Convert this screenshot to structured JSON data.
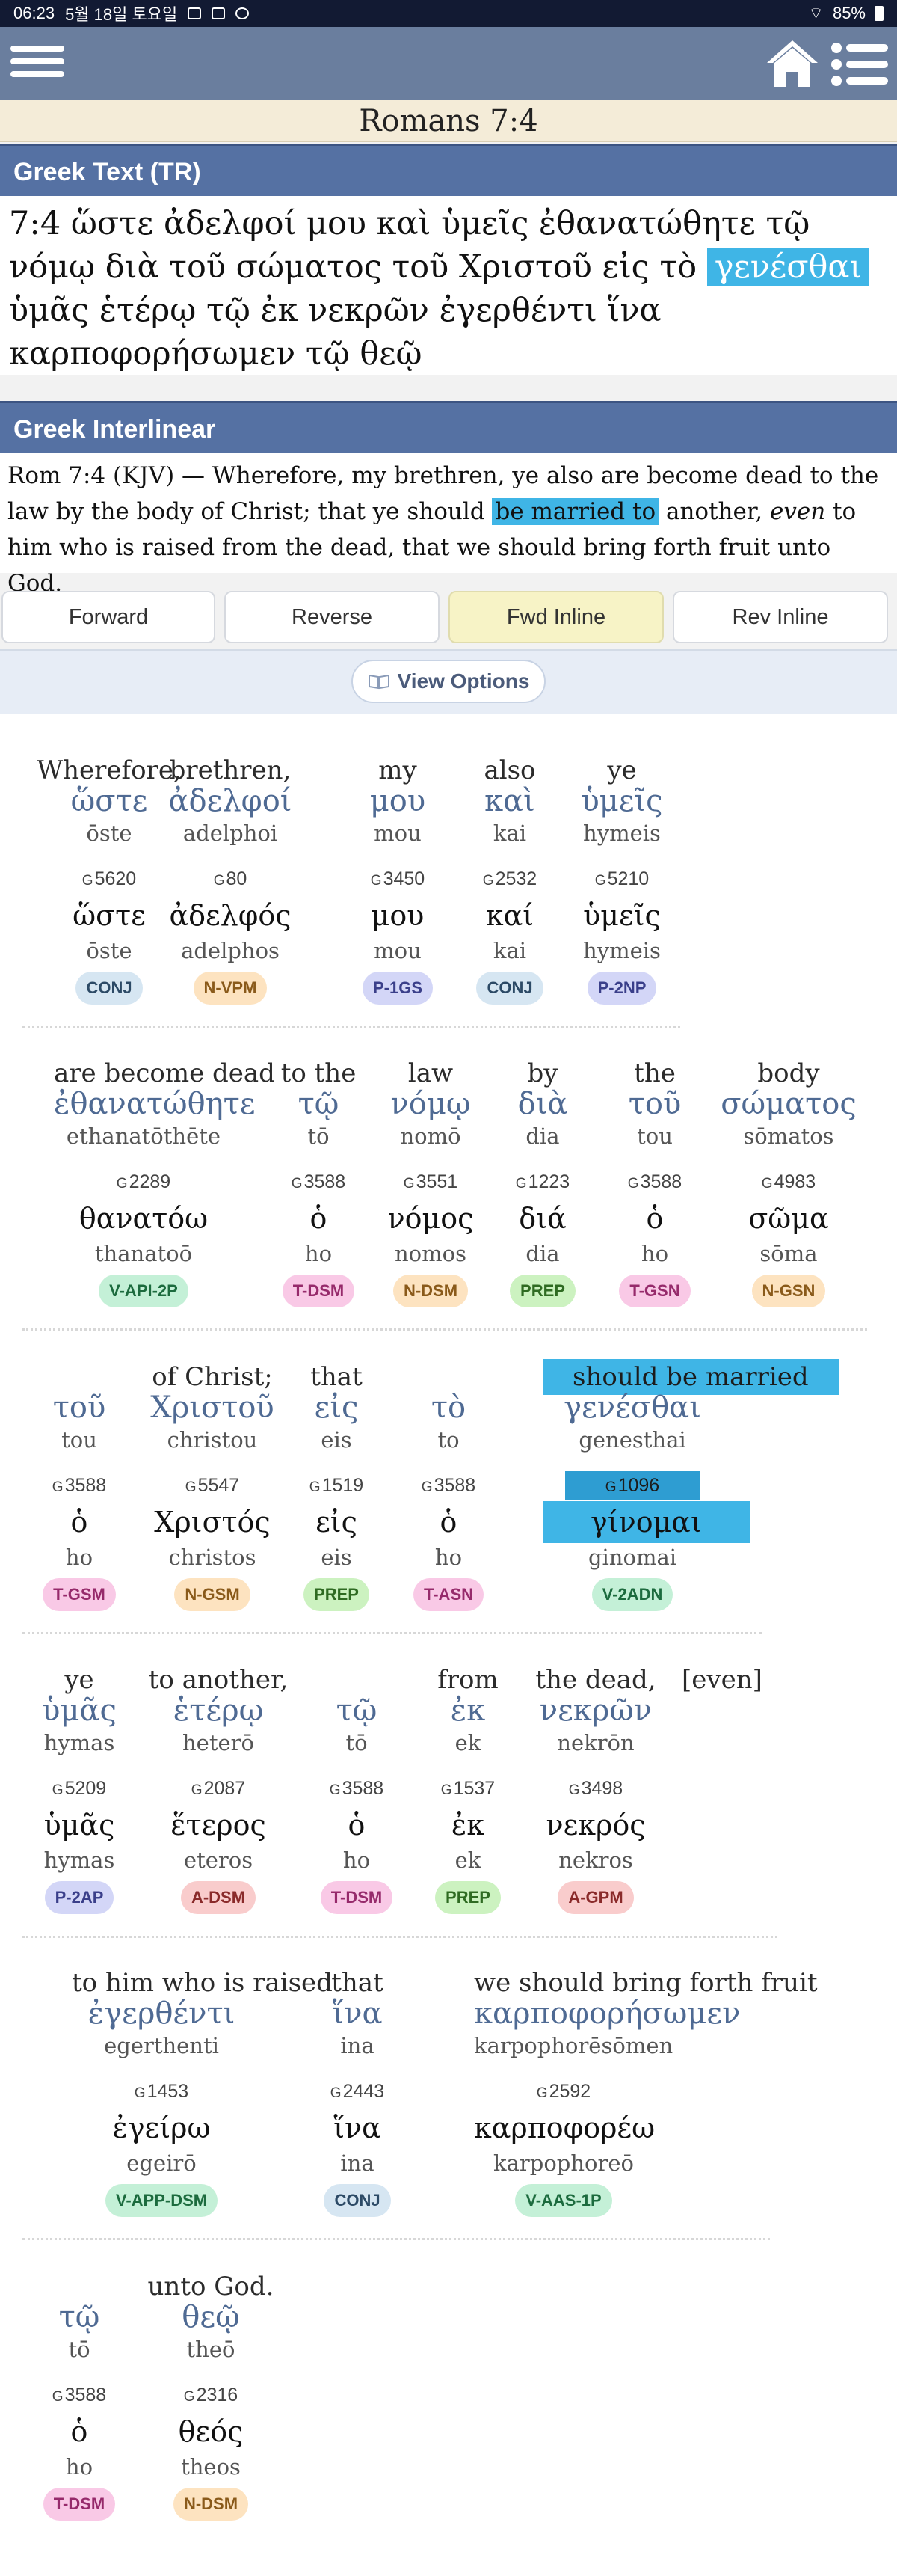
{
  "status_bar": {
    "time": "06:23",
    "date": "5월 18일 토요일",
    "battery": "85%"
  },
  "reference": {
    "title": "Romans 7:4"
  },
  "greek_text": {
    "header": "Greek Text (TR)",
    "line1": "7:4 ὥστε ἀδελφοί μου καὶ ὑμεῖς ἐθανατώθητε τῷ",
    "line2_before": "νόμῳ διὰ τοῦ σώματος τοῦ Χριστοῦ εἰς τὸ",
    "line2_highlight": "γενέσθαι",
    "line3": "ὑμᾶς ἑτέρῳ τῷ ἐκ νεκρῶν ἐγερθέντι ἵνα",
    "line4": "καρποφορήσωμεν τῷ θεῷ"
  },
  "interlinear_header": "Greek Interlinear",
  "kjv": {
    "part1": "Rom 7:4 (KJV) — Wherefore, my brethren, ye also are become dead to the law by the body of Christ; that ye should",
    "highlight": "be married to",
    "part2": "another,",
    "italic": "even",
    "part3": "to him who is raised from the dead, that we should bring forth fruit unto God."
  },
  "tabs": [
    {
      "label": "Forward",
      "active": false
    },
    {
      "label": "Reverse",
      "active": false
    },
    {
      "label": "Fwd Inline",
      "active": true
    },
    {
      "label": "Rev Inline",
      "active": false
    }
  ],
  "view_options": {
    "label": "View Options"
  },
  "colors": {
    "CONJ": "#d6e6f2",
    "N": "#fde3c0",
    "P": "#d3d6f7",
    "V": "#c4f0d7",
    "T": "#f9c9e6",
    "PREP": "#ccf2c0",
    "A": "#f9cccc"
  },
  "rows": [
    {
      "words": [
        {
          "en": "Wherefore,",
          "gr": "ὥστε",
          "tr": "ōste",
          "num": "5620",
          "lemma": "ὥστε",
          "lt": "ōste",
          "pos": "CONJ",
          "cat": "CONJ"
        },
        {
          "en": "brethren,",
          "gr": "ἀδελφοί",
          "tr": "adelphoi",
          "num": "80",
          "lemma": "ἀδελφός",
          "lt": "adelphos",
          "pos": "N-VPM",
          "cat": "N"
        },
        {
          "en": "my",
          "gr": "μου",
          "tr": "mou",
          "num": "3450",
          "lemma": "μου",
          "lt": "mou",
          "pos": "P-1GS",
          "cat": "P"
        },
        {
          "en": "also",
          "gr": "καὶ",
          "tr": "kai",
          "num": "2532",
          "lemma": "καί",
          "lt": "kai",
          "pos": "CONJ",
          "cat": "CONJ"
        },
        {
          "en": "ye",
          "gr": "ὑμεῖς",
          "tr": "hymeis",
          "num": "5210",
          "lemma": "ὑμεῖς",
          "lt": "hymeis",
          "pos": "P-2NP",
          "cat": "P"
        }
      ]
    },
    {
      "words": [
        {
          "en": "are become dead",
          "gr": "ἐθανατώθητε",
          "tr": "ethanatōthēte",
          "num": "2289",
          "lemma": "θανατόω",
          "lt": "thanatoō",
          "pos": "V-API-2P",
          "cat": "V"
        },
        {
          "en": "to the",
          "gr": "τῷ",
          "tr": "tō",
          "num": "3588",
          "lemma": "ὁ",
          "lt": "ho",
          "pos": "T-DSM",
          "cat": "T"
        },
        {
          "en": "law",
          "gr": "νόμῳ",
          "tr": "nomō",
          "num": "3551",
          "lemma": "νόμος",
          "lt": "nomos",
          "pos": "N-DSM",
          "cat": "N"
        },
        {
          "en": "by",
          "gr": "διὰ",
          "tr": "dia",
          "num": "1223",
          "lemma": "διά",
          "lt": "dia",
          "pos": "PREP",
          "cat": "PREP"
        },
        {
          "en": "the",
          "gr": "τοῦ",
          "tr": "tou",
          "num": "3588",
          "lemma": "ὁ",
          "lt": "ho",
          "pos": "T-GSN",
          "cat": "T"
        },
        {
          "en": "body",
          "gr": "σώματος",
          "tr": "sōmatos",
          "num": "4983",
          "lemma": "σῶμα",
          "lt": "sōma",
          "pos": "N-GSN",
          "cat": "N"
        }
      ]
    },
    {
      "words": [
        {
          "en": "",
          "gr": "τοῦ",
          "tr": "tou",
          "num": "3588",
          "lemma": "ὁ",
          "lt": "ho",
          "pos": "T-GSM",
          "cat": "T"
        },
        {
          "en": "of Christ;",
          "gr": "Χριστοῦ",
          "tr": "christou",
          "num": "5547",
          "lemma": "Χριστός",
          "lt": "christos",
          "pos": "N-GSM",
          "cat": "N"
        },
        {
          "en": "that",
          "gr": "εἰς",
          "tr": "eis",
          "num": "1519",
          "lemma": "εἰς",
          "lt": "eis",
          "pos": "PREP",
          "cat": "PREP"
        },
        {
          "en": "",
          "gr": "τὸ",
          "tr": "to",
          "num": "3588",
          "lemma": "ὁ",
          "lt": "ho",
          "pos": "T-ASN",
          "cat": "T"
        },
        {
          "en": "should be married",
          "gr": "γενέσθαι",
          "tr": "genesthai",
          "num": "1096",
          "lemma": "γίνομαι",
          "lt": "ginomai",
          "pos": "V-2ADN",
          "cat": "V",
          "highlight": true
        }
      ]
    },
    {
      "words": [
        {
          "en": "ye",
          "gr": "ὑμᾶς",
          "tr": "hymas",
          "num": "5209",
          "lemma": "ὑμᾶς",
          "lt": "hymas",
          "pos": "P-2AP",
          "cat": "P"
        },
        {
          "en": "to another,",
          "gr": "ἑτέρῳ",
          "tr": "heterō",
          "num": "2087",
          "lemma": "ἕτερος",
          "lt": "eteros",
          "pos": "A-DSM",
          "cat": "A"
        },
        {
          "en": "",
          "gr": "τῷ",
          "tr": "tō",
          "num": "3588",
          "lemma": "ὁ",
          "lt": "ho",
          "pos": "T-DSM",
          "cat": "T"
        },
        {
          "en": "from",
          "gr": "ἐκ",
          "tr": "ek",
          "num": "1537",
          "lemma": "ἐκ",
          "lt": "ek",
          "pos": "PREP",
          "cat": "PREP"
        },
        {
          "en": "the dead,",
          "gr": "νεκρῶν",
          "tr": "nekrōn",
          "num": "3498",
          "lemma": "νεκρός",
          "lt": "nekros",
          "pos": "A-GPM",
          "cat": "A"
        },
        {
          "en": "[even]",
          "gr": "",
          "tr": "",
          "num": "",
          "lemma": "",
          "lt": "",
          "pos": "",
          "cat": ""
        }
      ]
    },
    {
      "words": [
        {
          "en": "to him who is raised",
          "gr": "ἐγερθέντι",
          "tr": "egerthenti",
          "num": "1453",
          "lemma": "ἐγείρω",
          "lt": "egeirō",
          "pos": "V-APP-DSM",
          "cat": "V"
        },
        {
          "en": "that",
          "gr": "ἵνα",
          "tr": "ina",
          "num": "2443",
          "lemma": "ἵνα",
          "lt": "ina",
          "pos": "CONJ",
          "cat": "CONJ"
        },
        {
          "en": "we should bring forth fruit",
          "gr": "καρποφορήσωμεν",
          "tr": "karpophorēsōmen",
          "num": "2592",
          "lemma": "καρποφορέω",
          "lt": "karpophoreō",
          "pos": "V-AAS-1P",
          "cat": "V"
        }
      ]
    },
    {
      "words": [
        {
          "en": "",
          "gr": "τῷ",
          "tr": "tō",
          "num": "3588",
          "lemma": "ὁ",
          "lt": "ho",
          "pos": "T-DSM",
          "cat": "T"
        },
        {
          "en": "unto God.",
          "gr": "θεῷ",
          "tr": "theō",
          "num": "2316",
          "lemma": "θεός",
          "lt": "theos",
          "pos": "N-DSM",
          "cat": "N"
        }
      ]
    }
  ]
}
